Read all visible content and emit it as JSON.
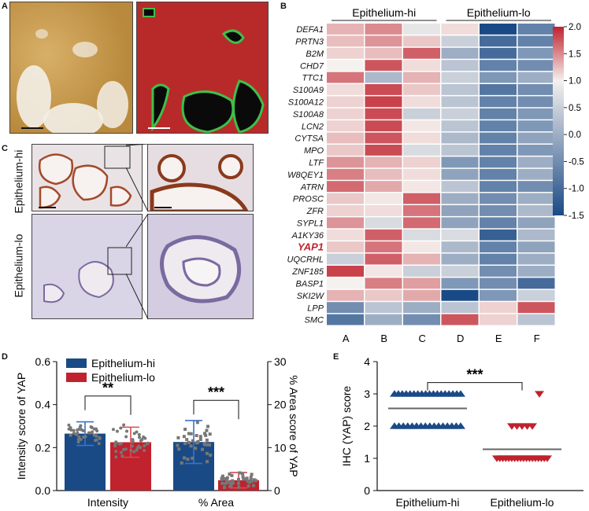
{
  "panels": {
    "A": {
      "label": "A"
    },
    "B": {
      "label": "B"
    },
    "C": {
      "label": "C",
      "row_labels": [
        "Epithelium-hi",
        "Epithelium-lo"
      ]
    },
    "D": {
      "label": "D"
    },
    "E": {
      "label": "E"
    }
  },
  "colors": {
    "hi": "#1a4a86",
    "lo": "#c0222e",
    "tissue": "#c79a4e",
    "mask_red": "#b82a2a",
    "mask_green": "#3fbf4a",
    "yap_highlight": "#c0222e"
  },
  "chart_data": [
    {
      "type": "heatmap",
      "panel": "B",
      "group_labels": [
        "Epithelium-hi",
        "Epithelium-lo"
      ],
      "columns": [
        "A",
        "B",
        "C",
        "D",
        "E",
        "F"
      ],
      "rows": [
        "DEFA1",
        "PRTN3",
        "B2M",
        "CHD7",
        "TTC1",
        "S100A9",
        "S100A12",
        "S100A8",
        "LCN2",
        "CYTSA",
        "MPO",
        "LTF",
        "W8QEY1",
        "ATRN",
        "PROSC",
        "ZFR",
        "SYPL1",
        "A1KY36",
        "YAP1",
        "UQCRHL",
        "ZNF185",
        "BASP1",
        "SKI2W",
        "LPP",
        "SMC"
      ],
      "highlight_row": "YAP1",
      "values": [
        [
          0.6,
          1.0,
          -0.1,
          0.2,
          -1.5,
          -1.0
        ],
        [
          0.5,
          0.9,
          0.4,
          -0.3,
          -1.2,
          -1.0
        ],
        [
          0.3,
          0.5,
          1.4,
          -0.6,
          -1.2,
          -0.8
        ],
        [
          0.0,
          1.5,
          0.2,
          -0.4,
          -1.0,
          -0.9
        ],
        [
          1.2,
          -0.5,
          0.6,
          -0.3,
          -0.8,
          -0.6
        ],
        [
          0.2,
          1.6,
          0.4,
          -0.4,
          -1.1,
          -0.9
        ],
        [
          0.3,
          1.7,
          0.2,
          -0.4,
          -1.0,
          -0.9
        ],
        [
          0.3,
          1.6,
          -0.3,
          -0.3,
          -1.0,
          -0.8
        ],
        [
          0.3,
          1.6,
          0.1,
          -0.4,
          -1.0,
          -0.8
        ],
        [
          0.5,
          1.5,
          0.2,
          -0.5,
          -1.0,
          -0.7
        ],
        [
          0.4,
          1.6,
          -0.2,
          -0.4,
          -1.0,
          -0.8
        ],
        [
          0.9,
          0.6,
          0.3,
          -0.8,
          -1.0,
          -0.6
        ],
        [
          1.1,
          0.5,
          0.2,
          -0.7,
          -1.0,
          -0.6
        ],
        [
          1.3,
          0.7,
          0.1,
          -0.4,
          -1.0,
          -0.9
        ],
        [
          0.4,
          0.1,
          1.4,
          -0.6,
          -0.9,
          -0.6
        ],
        [
          0.3,
          0.2,
          1.2,
          -0.7,
          -0.9,
          -0.5
        ],
        [
          0.9,
          -0.2,
          1.3,
          -0.7,
          -1.0,
          -0.7
        ],
        [
          0.2,
          1.4,
          -0.2,
          -0.2,
          -1.3,
          -0.5
        ],
        [
          0.4,
          1.2,
          0.1,
          -0.5,
          -1.0,
          -0.7
        ],
        [
          -0.3,
          1.4,
          0.6,
          -0.6,
          -1.0,
          -0.6
        ],
        [
          1.7,
          0.1,
          -0.3,
          -0.3,
          -0.9,
          -0.6
        ],
        [
          0.0,
          1.1,
          0.8,
          -0.8,
          -0.9,
          -1.2
        ],
        [
          0.6,
          0.4,
          0.7,
          -1.6,
          -0.8,
          -0.3
        ],
        [
          -0.9,
          -0.4,
          -0.6,
          -0.4,
          0.3,
          1.5
        ],
        [
          -1.1,
          -0.6,
          -0.9,
          1.5,
          0.3,
          -0.4
        ]
      ],
      "colorbar": {
        "min": -1.5,
        "max": 2.0,
        "ticks": [
          "2.0",
          "1.5",
          "1.0",
          "0.5",
          "0.0",
          "-0.5",
          "-1.0",
          "-1.5"
        ]
      }
    },
    {
      "type": "bar",
      "panel": "D",
      "legend": [
        "Epithelium-hi",
        "Epithelium-lo"
      ],
      "categories": [
        "Intensity",
        "% Area"
      ],
      "ylabel": "Intensity score of YAP",
      "y2label": "% Area score of YAP",
      "ylim": [
        0,
        0.6
      ],
      "y2lim": [
        0,
        30
      ],
      "yticks": [
        "0.0",
        "0.2",
        "0.4",
        "0.6"
      ],
      "y2ticks": [
        "0",
        "10",
        "20",
        "30"
      ],
      "series": [
        {
          "name": "Epithelium-hi",
          "values": [
            0.265,
            11.3
          ],
          "sd": [
            0.055,
            5.0
          ]
        },
        {
          "name": "Epithelium-lo",
          "values": [
            0.225,
            2.4
          ],
          "sd": [
            0.07,
            1.8
          ]
        }
      ],
      "significance": [
        "**",
        "***"
      ]
    },
    {
      "type": "scatter",
      "panel": "E",
      "categories": [
        "Epithelium-hi",
        "Epithelium-lo"
      ],
      "ylabel": "IHC (YAP) score",
      "ylim": [
        0,
        4
      ],
      "yticks": [
        "0",
        "1",
        "2",
        "3",
        "4"
      ],
      "means": [
        2.55,
        1.28
      ],
      "significance": "***"
    }
  ]
}
